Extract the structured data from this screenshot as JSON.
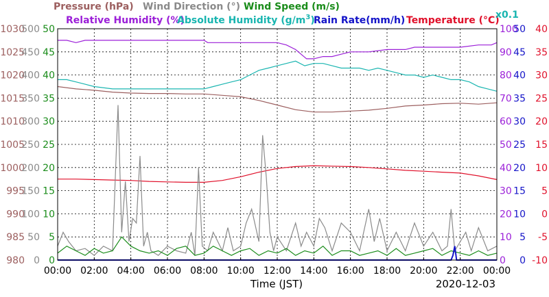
{
  "chart_data": {
    "type": "line",
    "titles": {
      "pressure": "Pressure (hPa)",
      "wind_direction": "Wind Direction (°)",
      "wind_speed": "Wind Speed (m/s)",
      "humidity": "Relative Humidity (%)",
      "abs_humidity_prefix": "Absolute Humidity (g/m",
      "abs_humidity_sup": "3",
      "abs_humidity_suffix": ")",
      "abs_humidity_scale": "x0.1",
      "rain_rate": "Rain Rate(mm/h)",
      "temperature": "Temperature (°C)"
    },
    "xlabel": "Time (JST)",
    "date": "2020-12-03",
    "x_ticks": [
      "00:00",
      "02:00",
      "04:00",
      "06:00",
      "08:00",
      "10:00",
      "12:00",
      "14:00",
      "16:00",
      "18:00",
      "20:00",
      "22:00",
      "00:00"
    ],
    "xlim_hours": [
      0,
      24
    ],
    "axes": {
      "pressure": {
        "ticks": [
          "1030",
          "1025",
          "1020",
          "1015",
          "1010",
          "1005",
          "1000",
          "995",
          "990",
          "985",
          "980"
        ],
        "ylim": [
          980,
          1030
        ],
        "color": "#9c5f5f"
      },
      "wind_direction": {
        "ticks": [
          "500",
          "450",
          "400",
          "350",
          "300",
          "250",
          "200",
          "150",
          "100",
          "50",
          "0"
        ],
        "ylim": [
          0,
          500
        ],
        "color": "#8a8a8a"
      },
      "wind_speed": {
        "ticks": [
          "50",
          "45",
          "40",
          "35",
          "30",
          "25",
          "20",
          "15",
          "10",
          "5",
          "0"
        ],
        "ylim": [
          0,
          50
        ],
        "color": "#1a8c1a"
      },
      "humidity": {
        "ticks": [
          "100",
          "90",
          "80",
          "70",
          "60",
          "50",
          "40",
          "30",
          "20",
          "10",
          "0"
        ],
        "ylim": [
          0,
          100
        ],
        "color": "#9b1fd8"
      },
      "rain_rate": {
        "ticks": [
          "50",
          "45",
          "40",
          "35",
          "30",
          "25",
          "20",
          "15",
          "10",
          "5",
          "0"
        ],
        "ylim": [
          0,
          50
        ],
        "color": "#1414c8"
      },
      "temperature": {
        "ticks": [
          "40",
          "35",
          "30",
          "25",
          "20",
          "15",
          "10",
          "5",
          "0",
          "-5",
          "-10"
        ],
        "ylim": [
          -10,
          40
        ],
        "color": "#e0102a"
      }
    },
    "grid": true,
    "series": [
      {
        "name": "Relative Humidity (%)",
        "axis": "humidity",
        "color": "#9b1fd8",
        "x": [
          0,
          0.5,
          1,
          1.5,
          2,
          3,
          4,
          5,
          6,
          7,
          8,
          8.2,
          8.5,
          9,
          10,
          10.5,
          11,
          12,
          12.5,
          13,
          13.3,
          13.6,
          14,
          14.5,
          15,
          15.5,
          16,
          17,
          18,
          19,
          19.5,
          20,
          21,
          22,
          23,
          23.7,
          24
        ],
        "y": [
          95,
          95,
          94,
          95,
          95,
          95,
          95,
          95,
          95,
          95,
          95,
          94,
          94,
          94,
          94,
          94,
          94,
          94,
          93,
          91,
          89,
          87,
          87,
          88,
          88,
          89,
          90,
          90,
          91,
          91,
          92,
          92,
          92,
          92,
          93,
          93,
          94
        ]
      },
      {
        "name": "Absolute Humidity (g/m3) x0.1",
        "axis": "humidity",
        "color": "#19b5b0",
        "x": [
          0,
          0.5,
          1,
          1.5,
          2,
          3,
          4,
          5,
          6,
          6.5,
          7,
          7.5,
          8,
          8.5,
          9,
          9.5,
          10,
          10.5,
          11,
          11.5,
          12,
          12.5,
          13,
          13.5,
          14,
          14.5,
          15,
          15.5,
          16,
          16.5,
          17,
          17.5,
          18,
          18.5,
          19,
          19.5,
          20,
          20.5,
          21,
          21.5,
          22,
          22.5,
          23,
          23.5,
          24
        ],
        "y": [
          78,
          78,
          77,
          76,
          75,
          74,
          74,
          74,
          74,
          74,
          74,
          74,
          74,
          75,
          76,
          77,
          78,
          80,
          82,
          83,
          84,
          85,
          86,
          84,
          85,
          85,
          84,
          83,
          83,
          83,
          82,
          83,
          82,
          81,
          80,
          80,
          79,
          80,
          79,
          78,
          78,
          77,
          75,
          74,
          73
        ]
      },
      {
        "name": "Pressure (hPa)",
        "axis": "pressure",
        "color": "#9c5f5f",
        "x": [
          0,
          1,
          2,
          3,
          4,
          5,
          6,
          7,
          8,
          9,
          10,
          11,
          12,
          13,
          14,
          15,
          16,
          17,
          18,
          19,
          20,
          21,
          22,
          23,
          24
        ],
        "y": [
          1017.5,
          1017,
          1016.7,
          1016.3,
          1016.1,
          1016,
          1016,
          1015.9,
          1015.9,
          1015.6,
          1015.3,
          1014.5,
          1013.5,
          1012.5,
          1012,
          1012,
          1012.2,
          1012.4,
          1012.8,
          1013.3,
          1013.5,
          1013.8,
          1013.9,
          1013.7,
          1014
        ]
      },
      {
        "name": "Temperature (°C)",
        "axis": "temperature",
        "color": "#e0102a",
        "x": [
          0,
          1,
          2,
          3,
          4,
          5,
          6,
          7,
          8,
          9,
          10,
          11,
          12,
          13,
          14,
          15,
          16,
          17,
          18,
          19,
          20,
          21,
          22,
          23,
          24
        ],
        "y": [
          7.5,
          7.5,
          7.4,
          7.3,
          7.2,
          7.0,
          6.9,
          6.8,
          6.8,
          7.2,
          8.0,
          9.0,
          9.8,
          10.2,
          10.4,
          10.3,
          10.2,
          10.0,
          9.7,
          9.4,
          9.2,
          9.0,
          8.8,
          8.2,
          7.4
        ]
      },
      {
        "name": "Wind Direction (°)",
        "axis": "wind_direction",
        "color": "#8a8a8a",
        "x": [
          0,
          0.3,
          0.6,
          1,
          1.5,
          2,
          2.5,
          3,
          3.3,
          3.5,
          3.7,
          3.9,
          4.1,
          4.3,
          4.5,
          4.7,
          4.9,
          5.1,
          5.5,
          6,
          6.5,
          7,
          7.3,
          7.5,
          7.7,
          7.9,
          8.2,
          8.5,
          9,
          9.3,
          9.6,
          10,
          10.3,
          10.6,
          11,
          11.2,
          11.4,
          11.6,
          11.8,
          12,
          12.5,
          13,
          13.3,
          13.6,
          14,
          14.3,
          14.6,
          15,
          15.5,
          16,
          16.5,
          17,
          17.3,
          17.6,
          18,
          18.5,
          19,
          19.5,
          20,
          20.5,
          21,
          21.3,
          21.5,
          21.7,
          22,
          22.3,
          22.6,
          23,
          23.5,
          24
        ],
        "y": [
          30,
          60,
          40,
          20,
          25,
          10,
          30,
          20,
          335,
          60,
          170,
          40,
          90,
          80,
          225,
          30,
          60,
          20,
          10,
          30,
          20,
          15,
          60,
          10,
          200,
          30,
          20,
          60,
          20,
          70,
          20,
          30,
          80,
          110,
          40,
          270,
          180,
          60,
          20,
          50,
          20,
          80,
          30,
          60,
          30,
          90,
          70,
          20,
          80,
          60,
          20,
          110,
          40,
          90,
          20,
          60,
          20,
          80,
          30,
          60,
          20,
          30,
          110,
          20,
          40,
          60,
          20,
          70,
          20,
          30
        ]
      },
      {
        "name": "Wind Speed (m/s)",
        "axis": "wind_speed",
        "color": "#1a8c1a",
        "x": [
          0,
          0.5,
          1,
          1.5,
          2,
          2.5,
          3,
          3.5,
          4,
          4.5,
          5,
          5.5,
          6,
          6.5,
          7,
          7.5,
          8,
          8.5,
          9,
          9.5,
          10,
          10.5,
          11,
          11.5,
          12,
          12.5,
          13,
          13.5,
          14,
          14.5,
          15,
          15.5,
          16,
          16.5,
          17,
          17.5,
          18,
          18.5,
          19,
          19.5,
          20,
          20.5,
          21,
          21.5,
          22,
          22.5,
          23,
          23.5,
          24
        ],
        "y": [
          1.5,
          3,
          2,
          1,
          2.5,
          1.5,
          2,
          5,
          3,
          2,
          1.5,
          2,
          1,
          2.5,
          3,
          1,
          1.5,
          3,
          2,
          1,
          2,
          2.5,
          1,
          2,
          1.5,
          2.5,
          1,
          2,
          1.5,
          3,
          1,
          2,
          2,
          1,
          1.5,
          2,
          1,
          2.5,
          1,
          1.5,
          2,
          2.5,
          1,
          2,
          1.5,
          1,
          2,
          1,
          1.5
        ]
      },
      {
        "name": "Rain Rate(mm/h)",
        "axis": "rain_rate",
        "color": "#1414c8",
        "x": [
          0,
          21.5,
          21.6,
          21.7,
          21.8,
          24
        ],
        "y": [
          0,
          0,
          1,
          3,
          0,
          0
        ]
      }
    ]
  }
}
